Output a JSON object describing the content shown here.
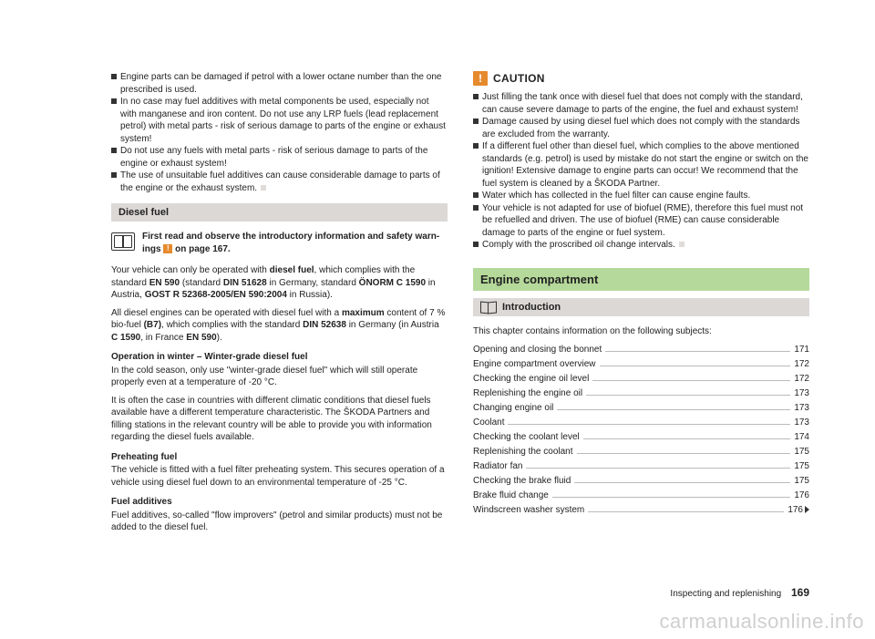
{
  "left": {
    "bullets_top": [
      "Engine parts can be damaged if petrol with a lower octane number than the one prescribed is used.",
      "In no case may fuel additives with metal components be used, especially not with manganese and iron content. Do not use any LRP fuels (lead replacement petrol) with metal parts - risk of serious damage to parts of the engine or exhaust system!",
      "Do not use any fuels with metal parts - risk of serious damage to parts of the engine or exhaust system!",
      "The use of unsuitable fuel additives can cause considerable damage to parts of the engine or the exhaust system."
    ],
    "heading": "Diesel fuel",
    "read_first_a": "First read and observe the introductory information and safety warn-",
    "read_first_b": "ings ",
    "read_first_c": " on page 167.",
    "p1_a": "Your vehicle can only be operated with ",
    "p1_b": "diesel fuel",
    "p1_c": ", which complies with the standard ",
    "p1_d": "EN 590",
    "p1_e": " (standard ",
    "p1_f": "DIN 51628",
    "p1_g": " in Germany, standard ",
    "p1_h": "ÖNORM C 1590",
    "p1_i": " in Austria, ",
    "p1_j": "GOST R 52368-2005/EN 590:2004",
    "p1_k": " in Russia).",
    "p2_a": "All diesel engines can be operated with diesel fuel with a ",
    "p2_b": "maximum",
    "p2_c": " content of 7 % bio-fuel ",
    "p2_d": "(B7)",
    "p2_e": ", which complies with the standard ",
    "p2_f": "DIN 52638",
    "p2_g": " in Germany (in Austria ",
    "p2_h": "C 1590",
    "p2_i": ", in France ",
    "p2_j": "EN 590",
    "p2_k": ").",
    "sub1": "Operation in winter – Winter-grade diesel fuel",
    "p3": "In the cold season, only use \"winter-grade diesel fuel\" which will still operate properly even at a temperature of -20 °C.",
    "p4": "It is often the case in countries with different climatic conditions that diesel fuels available have a different temperature characteristic. The ŠKODA Partners and filling stations in the relevant country will be able to provide you with information regarding the diesel fuels available.",
    "sub2": "Preheating fuel",
    "p5": "The vehicle is fitted with a fuel filter preheating system. This secures operation of a vehicle using diesel fuel down to an environmental temperature of -25 °C.",
    "sub3": "Fuel additives",
    "p6": "Fuel additives, so-called \"flow improvers\" (petrol and similar products) must not be added to the diesel fuel."
  },
  "right": {
    "caution_label": "CAUTION",
    "caution_bullets": [
      "Just filling the tank once with diesel fuel that does not comply with the standard, can cause severe damage to parts of the engine, the fuel and exhaust system!",
      "Damage caused by using diesel fuel which does not comply with the standards are excluded from the warranty.",
      "If a different fuel other than diesel fuel, which complies to the above mentioned standards (e.g. petrol) is used by mistake do not start the engine or switch on the ignition! Extensive damage to engine parts can occur! We recommend that the fuel system is cleaned by a ŠKODA Partner.",
      "Water which has collected in the fuel filter can cause engine faults.",
      "Your vehicle is not adapted for use of biofuel (RME), therefore this fuel must not be refuelled and driven. The use of biofuel (RME) can cause considerable damage to parts of the engine or fuel system.",
      "Comply with the proscribed oil change intervals."
    ],
    "green_heading": "Engine compartment",
    "intro_heading": "Introduction",
    "chapter_line": "This chapter contains information on the following subjects:",
    "toc": [
      {
        "label": "Opening and closing the bonnet",
        "page": "171"
      },
      {
        "label": "Engine compartment overview",
        "page": "172"
      },
      {
        "label": "Checking the engine oil level",
        "page": "172"
      },
      {
        "label": "Replenishing the engine oil",
        "page": "173"
      },
      {
        "label": "Changing engine oil",
        "page": "173"
      },
      {
        "label": "Coolant",
        "page": "173"
      },
      {
        "label": "Checking the coolant level",
        "page": "174"
      },
      {
        "label": "Replenishing the coolant",
        "page": "175"
      },
      {
        "label": "Radiator fan",
        "page": "175"
      },
      {
        "label": "Checking the brake fluid",
        "page": "175"
      },
      {
        "label": "Brake fluid change",
        "page": "176"
      },
      {
        "label": "Windscreen washer system",
        "page": "176"
      }
    ]
  },
  "footer_section": "Inspecting and replenishing",
  "footer_page": "169",
  "watermark": "carmanualsonline.info"
}
